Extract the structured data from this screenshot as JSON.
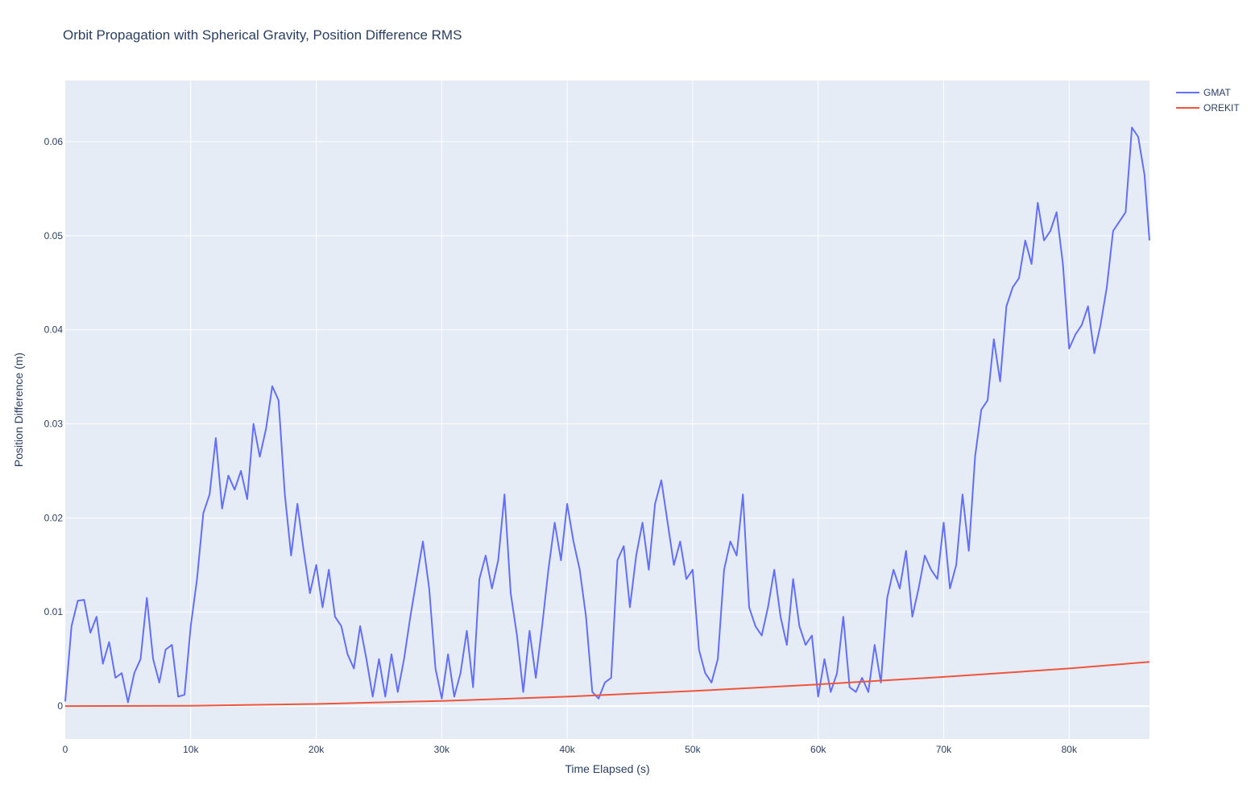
{
  "chart_data": {
    "type": "line",
    "title": "Orbit Propagation with Spherical Gravity, Position Difference RMS",
    "xlabel": "Time Elapsed (s)",
    "ylabel": "Position Difference (m)",
    "xlim": [
      0,
      86400
    ],
    "ylim": [
      -0.0035,
      0.0665
    ],
    "x_ticks": [
      0,
      10000,
      20000,
      30000,
      40000,
      50000,
      60000,
      70000,
      80000
    ],
    "x_tick_labels": [
      "0",
      "10k",
      "20k",
      "30k",
      "40k",
      "50k",
      "60k",
      "70k",
      "80k"
    ],
    "y_ticks": [
      0,
      0.01,
      0.02,
      0.03,
      0.04,
      0.05,
      0.06
    ],
    "y_tick_labels": [
      "0",
      "0.01",
      "0.02",
      "0.03",
      "0.04",
      "0.05",
      "0.06"
    ],
    "grid": true,
    "legend_position": "top-right",
    "series": [
      {
        "name": "GMAT",
        "color": "#636efa",
        "x": [
          0,
          500,
          1000,
          1500,
          2000,
          2500,
          3000,
          3500,
          4000,
          4500,
          5000,
          5500,
          6000,
          6500,
          7000,
          7500,
          8000,
          8500,
          9000,
          9500,
          10000,
          10500,
          11000,
          11500,
          12000,
          12500,
          13000,
          13500,
          14000,
          14500,
          15000,
          15500,
          16000,
          16500,
          17000,
          17500,
          18000,
          18500,
          19000,
          19500,
          20000,
          20500,
          21000,
          21500,
          22000,
          22500,
          23000,
          23500,
          24000,
          24500,
          25000,
          25500,
          26000,
          26500,
          27000,
          27500,
          28000,
          28500,
          29000,
          29500,
          30000,
          30500,
          31000,
          31500,
          32000,
          32500,
          33000,
          33500,
          34000,
          34500,
          35000,
          35500,
          36000,
          36500,
          37000,
          37500,
          38000,
          38500,
          39000,
          39500,
          40000,
          40500,
          41000,
          41500,
          42000,
          42500,
          43000,
          43500,
          44000,
          44500,
          45000,
          45500,
          46000,
          46500,
          47000,
          47500,
          48000,
          48500,
          49000,
          49500,
          50000,
          50500,
          51000,
          51500,
          52000,
          52500,
          53000,
          53500,
          54000,
          54500,
          55000,
          55500,
          56000,
          56500,
          57000,
          57500,
          58000,
          58500,
          59000,
          59500,
          60000,
          60500,
          61000,
          61500,
          62000,
          62500,
          63000,
          63500,
          64000,
          64500,
          65000,
          65500,
          66000,
          66500,
          67000,
          67500,
          68000,
          68500,
          69000,
          69500,
          70000,
          70500,
          71000,
          71500,
          72000,
          72500,
          73000,
          73500,
          74000,
          74500,
          75000,
          75500,
          76000,
          76500,
          77000,
          77500,
          78000,
          78500,
          79000,
          79500,
          80000,
          80500,
          81000,
          81500,
          82000,
          82500,
          83000,
          83500,
          84000,
          84500,
          85000,
          85500,
          86000,
          86400
        ],
        "y": [
          0.0005,
          0.0085,
          0.0112,
          0.0113,
          0.0078,
          0.0095,
          0.0045,
          0.0068,
          0.003,
          0.0035,
          0.0004,
          0.0035,
          0.005,
          0.0115,
          0.005,
          0.0025,
          0.006,
          0.0065,
          0.001,
          0.0012,
          0.0085,
          0.0135,
          0.0205,
          0.0225,
          0.0285,
          0.021,
          0.0245,
          0.023,
          0.025,
          0.022,
          0.03,
          0.0265,
          0.0295,
          0.034,
          0.0325,
          0.0225,
          0.016,
          0.0215,
          0.0165,
          0.012,
          0.015,
          0.0105,
          0.0145,
          0.0095,
          0.0085,
          0.0055,
          0.004,
          0.0085,
          0.005,
          0.001,
          0.005,
          0.001,
          0.0055,
          0.0015,
          0.005,
          0.0095,
          0.0135,
          0.0175,
          0.0125,
          0.004,
          0.0008,
          0.0055,
          0.001,
          0.0035,
          0.008,
          0.002,
          0.0135,
          0.016,
          0.0125,
          0.0155,
          0.0225,
          0.012,
          0.0075,
          0.0015,
          0.008,
          0.003,
          0.0085,
          0.0145,
          0.0195,
          0.0155,
          0.0215,
          0.0175,
          0.0145,
          0.0095,
          0.0015,
          0.0008,
          0.0025,
          0.003,
          0.0155,
          0.017,
          0.0105,
          0.016,
          0.0195,
          0.0145,
          0.0215,
          0.024,
          0.0195,
          0.015,
          0.0175,
          0.0135,
          0.0145,
          0.006,
          0.0035,
          0.0025,
          0.005,
          0.0145,
          0.0175,
          0.016,
          0.0225,
          0.0105,
          0.0085,
          0.0075,
          0.0105,
          0.0145,
          0.0095,
          0.0065,
          0.0135,
          0.0085,
          0.0065,
          0.0075,
          0.001,
          0.005,
          0.0015,
          0.0035,
          0.0095,
          0.002,
          0.0015,
          0.003,
          0.0015,
          0.0065,
          0.0025,
          0.0115,
          0.0145,
          0.0125,
          0.0165,
          0.0095,
          0.0125,
          0.016,
          0.0145,
          0.0135,
          0.0195,
          0.0125,
          0.015,
          0.0225,
          0.0165,
          0.0265,
          0.0315,
          0.0325,
          0.039,
          0.0345,
          0.0425,
          0.0445,
          0.0455,
          0.0495,
          0.047,
          0.0535,
          0.0495,
          0.0505,
          0.0525,
          0.047,
          0.038,
          0.0395,
          0.0405,
          0.0425,
          0.0375,
          0.0405,
          0.0445,
          0.0505,
          0.0515,
          0.0525,
          0.0615,
          0.0605,
          0.0565,
          0.0495
        ]
      },
      {
        "name": "OREKIT",
        "color": "#ef553b",
        "x": [
          0,
          10000,
          20000,
          30000,
          40000,
          50000,
          60000,
          70000,
          80000,
          86400
        ],
        "y": [
          0,
          3e-05,
          0.00022,
          0.00055,
          0.001,
          0.0016,
          0.0023,
          0.0031,
          0.004,
          0.0047
        ]
      }
    ]
  }
}
